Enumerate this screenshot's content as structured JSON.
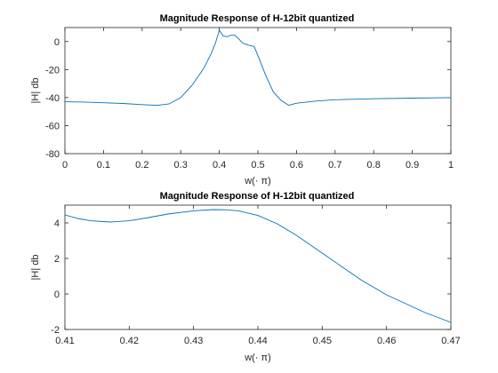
{
  "colors": {
    "line": "#0072BD",
    "axis": "#262626",
    "background": "#ffffff"
  },
  "chart_data": [
    {
      "type": "line",
      "title": "Magnitude Response of H-12bit quantized",
      "xlabel": "w(· π)",
      "ylabel": "|H| db",
      "xlim": [
        0,
        1
      ],
      "ylim": [
        -80,
        10
      ],
      "xticks": [
        0,
        0.1,
        0.2,
        0.3,
        0.4,
        0.5,
        0.6,
        0.7,
        0.8,
        0.9,
        1
      ],
      "xtick_labels": [
        "0",
        "0.1",
        "0.2",
        "0.3",
        "0.4",
        "0.5",
        "0.6",
        "0.7",
        "0.8",
        "0.9",
        "1"
      ],
      "yticks": [
        -80,
        -60,
        -40,
        -20,
        0
      ],
      "ytick_labels": [
        "-80",
        "-60",
        "-40",
        "-20",
        "0"
      ],
      "grid": false,
      "series": [
        {
          "x": [
            0,
            0.05,
            0.1,
            0.15,
            0.2,
            0.24,
            0.27,
            0.3,
            0.33,
            0.36,
            0.38,
            0.39,
            0.4,
            0.41,
            0.42,
            0.43,
            0.44,
            0.45,
            0.46,
            0.47,
            0.48,
            0.49,
            0.5,
            0.52,
            0.54,
            0.56,
            0.58,
            0.6,
            0.65,
            0.7,
            0.8,
            0.9,
            1.0
          ],
          "y": [
            -43,
            -43.2,
            -43.7,
            -44.2,
            -45,
            -45.5,
            -44.5,
            -40,
            -31,
            -19,
            -8,
            -1,
            8,
            4,
            3.5,
            4.5,
            4.5,
            2,
            -1,
            -2,
            -3,
            -3.5,
            -10,
            -24,
            -36,
            -42,
            -45.5,
            -44,
            -42.5,
            -41.5,
            -40.8,
            -40.4,
            -40
          ]
        }
      ]
    },
    {
      "type": "line",
      "title": "Magnitude Response of H-12bit quantized",
      "xlabel": "w(· π)",
      "ylabel": "|H| db",
      "xlim": [
        0.41,
        0.47
      ],
      "ylim": [
        -2,
        5
      ],
      "xticks": [
        0.41,
        0.42,
        0.43,
        0.44,
        0.45,
        0.46,
        0.47
      ],
      "xtick_labels": [
        "0.41",
        "0.42",
        "0.43",
        "0.44",
        "0.45",
        "0.46",
        "0.47"
      ],
      "yticks": [
        -2,
        0,
        2,
        4
      ],
      "ytick_labels": [
        "-2",
        "0",
        "2",
        "4"
      ],
      "grid": false,
      "series": [
        {
          "x": [
            0.41,
            0.412,
            0.414,
            0.417,
            0.42,
            0.423,
            0.426,
            0.43,
            0.433,
            0.435,
            0.437,
            0.44,
            0.443,
            0.446,
            0.45,
            0.453,
            0.456,
            0.46,
            0.463,
            0.466,
            0.47
          ],
          "y": [
            4.45,
            4.25,
            4.12,
            4.05,
            4.12,
            4.3,
            4.5,
            4.68,
            4.75,
            4.74,
            4.68,
            4.42,
            3.95,
            3.3,
            2.3,
            1.55,
            0.8,
            -0.05,
            -0.55,
            -1.05,
            -1.6
          ]
        }
      ]
    }
  ]
}
